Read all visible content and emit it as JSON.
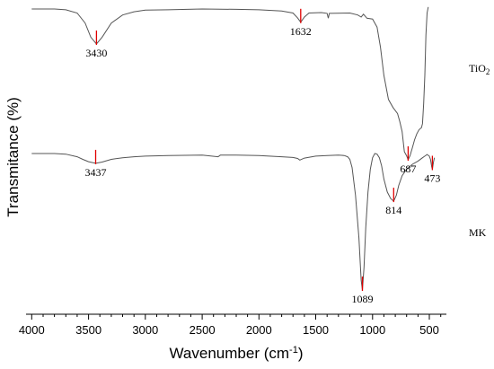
{
  "chart_data": {
    "type": "line",
    "xlabel": "Wavenumber (cm",
    "xlabel_sup": "-1",
    "xlabel_tail": ")",
    "ylabel": "Transmitance (%)",
    "x_reversed": true,
    "xlim": [
      4050,
      350
    ],
    "ylim": [
      0,
      1
    ],
    "x_ticks": [
      4000,
      3500,
      3000,
      2500,
      2000,
      1500,
      1000,
      500
    ],
    "grid": false,
    "series": [
      {
        "name": "TiO",
        "name_sub": "2",
        "color": "#555555",
        "x": [
          4000,
          3800,
          3700,
          3600,
          3530,
          3480,
          3430,
          3380,
          3300,
          3200,
          3100,
          3000,
          2800,
          2500,
          2200,
          2000,
          1800,
          1700,
          1660,
          1632,
          1600,
          1560,
          1450,
          1400,
          1390,
          1380,
          1200,
          1130,
          1100,
          1080,
          1050,
          1000,
          960,
          930,
          900,
          860,
          820,
          780,
          760,
          740,
          720,
          700,
          687,
          670,
          650,
          630,
          610,
          590,
          570,
          560,
          550,
          540,
          530,
          520,
          510
        ],
        "y": [
          0.985,
          0.985,
          0.983,
          0.975,
          0.95,
          0.915,
          0.898,
          0.915,
          0.95,
          0.97,
          0.978,
          0.982,
          0.983,
          0.985,
          0.984,
          0.983,
          0.98,
          0.975,
          0.963,
          0.952,
          0.965,
          0.975,
          0.976,
          0.974,
          0.962,
          0.974,
          0.975,
          0.97,
          0.965,
          0.972,
          0.962,
          0.96,
          0.94,
          0.89,
          0.82,
          0.76,
          0.74,
          0.725,
          0.705,
          0.68,
          0.63,
          0.62,
          0.61,
          0.62,
          0.64,
          0.66,
          0.675,
          0.685,
          0.69,
          0.7,
          0.75,
          0.82,
          0.92,
          0.975,
          0.99
        ]
      },
      {
        "name": "MK",
        "color": "#555555",
        "x": [
          4000,
          3800,
          3700,
          3600,
          3550,
          3500,
          3437,
          3380,
          3300,
          3200,
          3100,
          3000,
          2800,
          2500,
          2360,
          2340,
          2200,
          2000,
          1800,
          1700,
          1660,
          1640,
          1600,
          1500,
          1400,
          1300,
          1250,
          1220,
          1200,
          1180,
          1150,
          1120,
          1100,
          1089,
          1075,
          1060,
          1040,
          1020,
          1000,
          980,
          960,
          940,
          920,
          900,
          870,
          840,
          814,
          790,
          770,
          740,
          700,
          650,
          600,
          560,
          540,
          520,
          500,
          490,
          480,
          473,
          465,
          455
        ],
        "y": [
          0.588,
          0.588,
          0.586,
          0.578,
          0.57,
          0.563,
          0.558,
          0.562,
          0.57,
          0.575,
          0.578,
          0.58,
          0.582,
          0.583,
          0.578,
          0.583,
          0.583,
          0.582,
          0.578,
          0.576,
          0.573,
          0.568,
          0.574,
          0.58,
          0.582,
          0.583,
          0.582,
          0.578,
          0.57,
          0.545,
          0.46,
          0.33,
          0.2,
          0.17,
          0.24,
          0.36,
          0.47,
          0.54,
          0.575,
          0.588,
          0.586,
          0.575,
          0.55,
          0.51,
          0.47,
          0.45,
          0.442,
          0.46,
          0.49,
          0.52,
          0.54,
          0.555,
          0.565,
          0.575,
          0.58,
          0.585,
          0.58,
          0.57,
          0.548,
          0.54,
          0.56,
          0.575
        ]
      }
    ],
    "annotations": [
      {
        "label": "3430",
        "series": "TiO2",
        "x": 3430,
        "y": 0.898,
        "marker_color": "#e00000"
      },
      {
        "label": "1632",
        "series": "TiO2",
        "x": 1632,
        "y": 0.952,
        "marker_color": "#e00000"
      },
      {
        "label": "687",
        "series": "TiO2",
        "x": 687,
        "y": 0.61,
        "marker_color": "#e00000"
      },
      {
        "label": "3437",
        "series": "MK",
        "x": 3437,
        "y": 0.558,
        "marker_color": "#e00000"
      },
      {
        "label": "814",
        "series": "MK",
        "x": 814,
        "y": 0.442,
        "marker_color": "#e00000"
      },
      {
        "label": "473",
        "series": "MK",
        "x": 473,
        "y": 0.54,
        "marker_color": "#e00000"
      },
      {
        "label": "1089",
        "series": "MK",
        "x": 1089,
        "y": 0.17,
        "marker_color": "#e00000"
      }
    ]
  }
}
